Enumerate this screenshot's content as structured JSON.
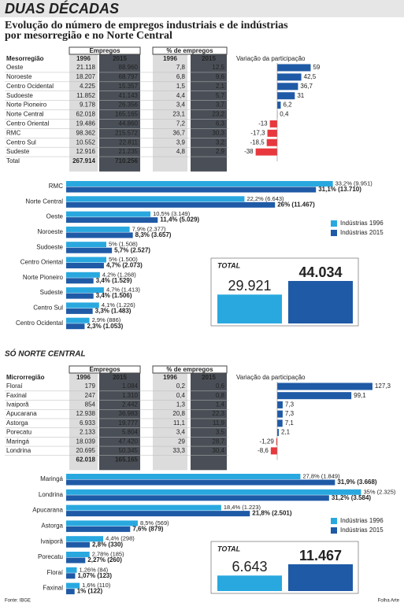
{
  "header": {
    "title": "DUAS DÉCADAS",
    "subtitle_lines": [
      "Evolução do número de empregos industriais e de indústrias",
      "por mesorregião e no Norte Central"
    ]
  },
  "table1": {
    "label": "Mesorregião",
    "jobs": "Empregos",
    "share": "% de empregos",
    "years": [
      "1996",
      "2015",
      "1996",
      "2015"
    ],
    "change": "Variação da participação",
    "rows": [
      [
        "Oeste",
        "21.118",
        "88.960",
        "7,8",
        "12,5"
      ],
      [
        "Noroeste",
        "18.207",
        "68.797",
        "6,8",
        "9,6"
      ],
      [
        "Centro Ocidental",
        "4.225",
        "15.357",
        "1,5",
        "2,1"
      ],
      [
        "Sudoeste",
        "11.852",
        "41.143",
        "4,4",
        "5,7"
      ],
      [
        "Norte Pioneiro",
        "9.178",
        "26.356",
        "3,4",
        "3,7"
      ],
      [
        "Norte Central",
        "62.018",
        "165.165",
        "23,1",
        "23,2"
      ],
      [
        "Centro Oriental",
        "19.486",
        "44.860",
        "7,2",
        "6,3"
      ],
      [
        "RMC",
        "98.362",
        "215.572",
        "36,7",
        "30,3"
      ],
      [
        "Centro Sul",
        "10.552",
        "22.811",
        "3,9",
        "3,2"
      ],
      [
        "Sudeste",
        "12.916",
        "21.235",
        "4,8",
        "2,9"
      ]
    ],
    "total": [
      "Total",
      "267.914",
      "710.256"
    ]
  },
  "section_title": "SÓ NORTE CENTRAL",
  "table2": {
    "label": "Microrregião",
    "jobs": "Empregos",
    "share": "% de empregos",
    "years": [
      "1996",
      "2015",
      "1996",
      "2015"
    ],
    "change": "Variação da participação",
    "rows": [
      [
        "Floraí",
        "179",
        "1.084",
        "0,2",
        "0,6"
      ],
      [
        "Faxinal",
        "247",
        "1.310",
        "0,4",
        "0,8"
      ],
      [
        "Ivaiporã",
        "854",
        "2.442",
        "1,3",
        "1,4"
      ],
      [
        "Apucarana",
        "12.938",
        "36.983",
        "20,8",
        "22,3"
      ],
      [
        "Astorga",
        "6.933",
        "19.777",
        "11,1",
        "11,9"
      ],
      [
        "Porecatu",
        "2.133",
        "5.804",
        "3,4",
        "3,5"
      ],
      [
        "Maringá",
        "18.039",
        "47.420",
        "29",
        "28,7"
      ],
      [
        "Londrina",
        "20.695",
        "50.345",
        "33,3",
        "30,4"
      ]
    ],
    "total": [
      "62.018",
      "165.165"
    ]
  },
  "chart_data": [
    {
      "type": "hbar",
      "values": [
        59,
        42.5,
        36.7,
        31,
        6.2,
        0.4,
        -13,
        -17.3,
        -18.5,
        -38
      ],
      "value_labels": [
        "59",
        "42,5",
        "36,7",
        "31",
        "6,2",
        "0,4",
        "-13",
        "-17,3",
        "-18,5",
        "-38"
      ],
      "color": "#1f5aa6",
      "negative_color": "#e8383d"
    },
    {
      "type": "grouped_hbar",
      "categories": [
        "RMC",
        "Norte Central",
        "Oeste",
        "Noroeste",
        "Sudoeste",
        "Centro Oriental",
        "Norte Pioneiro",
        "Sudeste",
        "Centro Sul",
        "Centro Ocidental"
      ],
      "series": [
        {
          "name": "Indústrias 1996",
          "color": "#29a8df",
          "values": [
            33.2,
            22.2,
            10.5,
            7.9,
            5,
            5,
            4.2,
            4.7,
            4.1,
            2.9
          ],
          "value_labels": [
            "33,2% (9.951)",
            "22,2% (6.643)",
            "10,5% (3.149)",
            "7,9% (2.377)",
            "5% (1.508)",
            "5% (1.500)",
            "4,2% (1.268)",
            "4,7% (1.413)",
            "4,1% (1.226)",
            "2,9% (886)"
          ]
        },
        {
          "name": "Indústrias 2015",
          "color": "#1f5aa6",
          "values": [
            31.1,
            26,
            11.4,
            8.3,
            5.7,
            4.7,
            3.4,
            3.4,
            3.3,
            2.3
          ],
          "value_labels": [
            "31,1% (13.710)",
            "26% (11.467)",
            "11,4% (5.029)",
            "8,3% (3.657)",
            "5,7% (2.527)",
            "4,7% (2.073)",
            "3,4% (1.529)",
            "3,4% (1.506)",
            "3,3% (1.483)",
            "2,3% (1.053)"
          ]
        }
      ]
    },
    {
      "type": "total_bars",
      "title": "TOTAL",
      "values": [
        29921,
        44034
      ],
      "value_labels": [
        "29.921",
        "44.034"
      ],
      "colors": [
        "#29a8df",
        "#1f5aa6"
      ]
    },
    {
      "type": "hbar",
      "values": [
        127.3,
        99.1,
        7.3,
        7.3,
        7.1,
        2.1,
        -1.29,
        -8.6
      ],
      "value_labels": [
        "127,3",
        "99,1",
        "7,3",
        "7,3",
        "7,1",
        "2,1",
        "-1,29",
        "-8,6"
      ],
      "color": "#1f5aa6",
      "negative_color": "#e8383d"
    },
    {
      "type": "grouped_hbar",
      "categories": [
        "Maringá",
        "Londrina",
        "Apucarana",
        "Astorga",
        "Ivaiporã",
        "Porecatu",
        "Floraí",
        "Faxinal"
      ],
      "series": [
        {
          "name": "Indústrias 1996",
          "color": "#29a8df",
          "values": [
            27.8,
            35,
            18.4,
            8.5,
            4.4,
            2.78,
            1.26,
            1.6
          ],
          "value_labels": [
            "27,8% (1.849)",
            "35% (2.325)",
            "18,4% (1.223)",
            "8,5% (569)",
            "4,4% (298)",
            "2,78% (185)",
            "1,26% (84)",
            "1,6% (110)"
          ]
        },
        {
          "name": "Indústrias 2015",
          "color": "#1f5aa6",
          "values": [
            31.9,
            31.2,
            21.8,
            7.6,
            2.8,
            2.27,
            1.07,
            1
          ],
          "value_labels": [
            "31,9% (3.668)",
            "31,2% (3.584)",
            "21,8% (2.501)",
            "7,6% (879)",
            "2,8% (330)",
            "2,27% (260)",
            "1,07% (123)",
            "1% (122)"
          ]
        }
      ]
    },
    {
      "type": "total_bars",
      "title": "TOTAL",
      "values": [
        6643,
        11467
      ],
      "value_labels": [
        "6.643",
        "11.467"
      ],
      "colors": [
        "#29a8df",
        "#1f5aa6"
      ]
    }
  ],
  "footer": {
    "source": "Fonte: IBGE",
    "credit": "Folha Arte"
  }
}
